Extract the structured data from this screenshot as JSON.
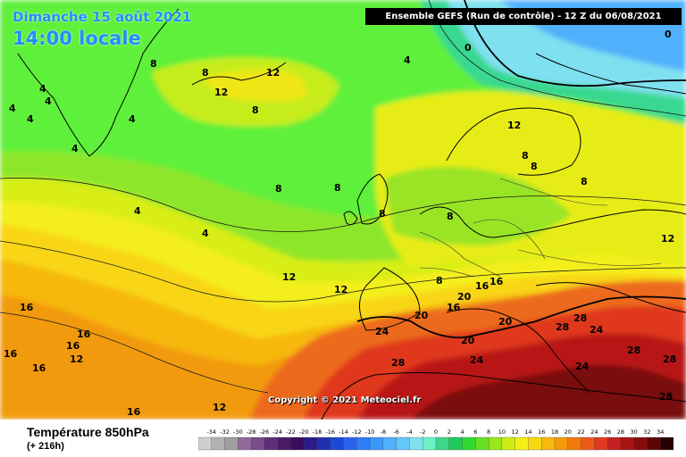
{
  "header": {
    "date": "Dimanche 15 août 2021",
    "time": "14:00 locale",
    "run": "Ensemble GEFS  (Run de contrôle)  -  12 Z du 06/08/2021"
  },
  "footer": {
    "variable": "Température 850hPa",
    "lead": "(+ 216h)",
    "copyright": "Copyright © 2021 Meteociel.fr"
  },
  "legend": {
    "ticks": [
      "-34",
      "-32",
      "-30",
      "-28",
      "-26",
      "-24",
      "-22",
      "-20",
      "-18",
      "-16",
      "-14",
      "-12",
      "-10",
      "-8",
      "-6",
      "-4",
      "-2",
      "0",
      "2",
      "4",
      "6",
      "8",
      "10",
      "12",
      "14",
      "16",
      "18",
      "20",
      "22",
      "24",
      "26",
      "28",
      "30",
      "32",
      "34"
    ],
    "colors": [
      "#cfcfcf",
      "#b2b2b2",
      "#9e9e9e",
      "#8f6a9a",
      "#7b4b8a",
      "#5e2e78",
      "#4b1a66",
      "#3b0d5e",
      "#2a1b8a",
      "#1e2fb0",
      "#1f47d6",
      "#2a62f0",
      "#2f7df7",
      "#3a98fb",
      "#4fb1fb",
      "#63c8f8",
      "#7fe0f0",
      "#6cf0c8",
      "#3ad889",
      "#20c85a",
      "#33d833",
      "#66e024",
      "#99e61a",
      "#ccec14",
      "#f4f015",
      "#f8d812",
      "#f8b80e",
      "#f49a0c",
      "#f07a0a",
      "#ec5a1a",
      "#e03a22",
      "#c8201e",
      "#a81414",
      "#880c0c",
      "#5e0606",
      "#2a0000"
    ]
  },
  "map": {
    "contour_labels": [
      {
        "id": "a",
        "text": "8"
      },
      {
        "id": "b",
        "text": "8"
      },
      {
        "id": "c",
        "text": "12"
      },
      {
        "id": "d",
        "text": "12"
      },
      {
        "id": "e",
        "text": "4"
      },
      {
        "id": "f",
        "text": "4"
      },
      {
        "id": "g",
        "text": "4"
      },
      {
        "id": "h",
        "text": "4"
      },
      {
        "id": "i",
        "text": "4"
      },
      {
        "id": "j",
        "text": "4"
      },
      {
        "id": "k",
        "text": "4"
      },
      {
        "id": "l",
        "text": "0"
      },
      {
        "id": "m",
        "text": "0"
      },
      {
        "id": "n",
        "text": "8"
      },
      {
        "id": "o",
        "text": "8"
      },
      {
        "id": "p",
        "text": "4"
      },
      {
        "id": "q",
        "text": "4"
      },
      {
        "id": "r",
        "text": "8"
      },
      {
        "id": "s",
        "text": "8"
      },
      {
        "id": "t",
        "text": "12"
      },
      {
        "id": "u",
        "text": "12"
      },
      {
        "id": "v",
        "text": "12"
      },
      {
        "id": "w",
        "text": "8"
      },
      {
        "id": "x",
        "text": "8"
      },
      {
        "id": "y",
        "text": "8"
      },
      {
        "id": "z",
        "text": "12"
      },
      {
        "id": "aa",
        "text": "16"
      },
      {
        "id": "ab",
        "text": "16"
      },
      {
        "id": "ac",
        "text": "16"
      },
      {
        "id": "ad",
        "text": "16"
      },
      {
        "id": "ae",
        "text": "16"
      },
      {
        "id": "af",
        "text": "16"
      },
      {
        "id": "ag",
        "text": "12"
      },
      {
        "id": "ah",
        "text": "12"
      },
      {
        "id": "ai",
        "text": "16"
      },
      {
        "id": "aj",
        "text": "16"
      },
      {
        "id": "ak",
        "text": "20"
      },
      {
        "id": "al",
        "text": "20"
      },
      {
        "id": "am",
        "text": "16"
      },
      {
        "id": "an",
        "text": "20"
      },
      {
        "id": "ao",
        "text": "20"
      },
      {
        "id": "ap",
        "text": "24"
      },
      {
        "id": "aq",
        "text": "28"
      },
      {
        "id": "ar",
        "text": "24"
      },
      {
        "id": "as",
        "text": "28"
      },
      {
        "id": "at",
        "text": "28"
      },
      {
        "id": "au",
        "text": "24"
      },
      {
        "id": "av",
        "text": "24"
      },
      {
        "id": "aw",
        "text": "28"
      },
      {
        "id": "ax",
        "text": "28"
      },
      {
        "id": "ay",
        "text": "28"
      },
      {
        "id": "az",
        "text": "8"
      },
      {
        "id": "ba",
        "text": "8"
      }
    ]
  }
}
